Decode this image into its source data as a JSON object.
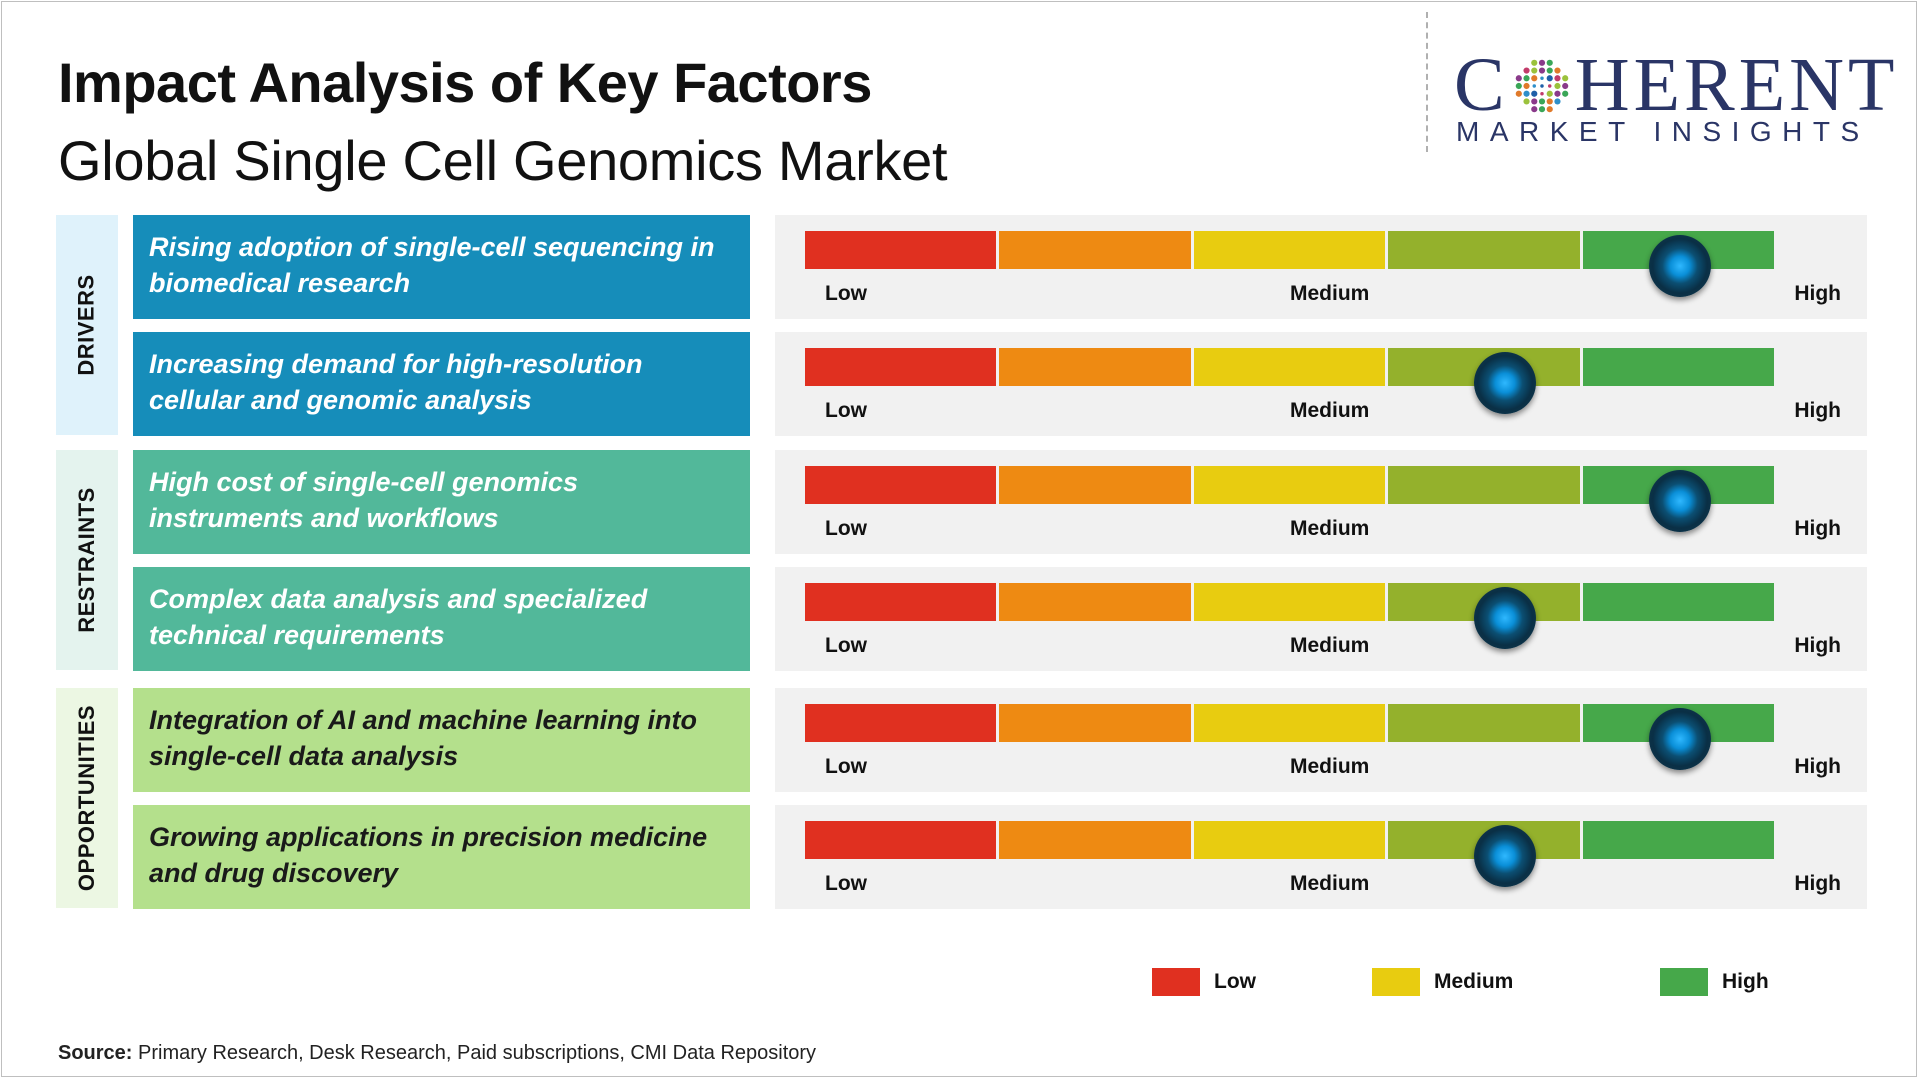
{
  "header": {
    "title": "Impact Analysis of Key Factors",
    "subtitle": "Global Single Cell Genomics Market"
  },
  "logo": {
    "name_prefix": "C",
    "name_suffix": "HERENT",
    "tagline": "MARKET INSIGHTS",
    "brand_color": "#2a3566"
  },
  "scale": {
    "low_label": "Low",
    "medium_label": "Medium",
    "high_label": "High",
    "segment_colors": [
      "#e03020",
      "#ee8a12",
      "#e8cc10",
      "#94b12c",
      "#46a84a"
    ]
  },
  "groups": [
    {
      "name": "DRIVERS",
      "tab_color": "#dff2fb"
    },
    {
      "name": "RESTRAINTS",
      "tab_color": "#e4f3ee"
    },
    {
      "name": "OPPORTUNITIES",
      "tab_color": "#ecf7e3"
    }
  ],
  "factors": [
    {
      "text": "Rising adoption of single-cell sequencing in biomedical research",
      "group": "DRIVERS",
      "impact": 0.9,
      "color": "#168dba"
    },
    {
      "text": "Increasing demand for high-resolution cellular and genomic analysis",
      "group": "DRIVERS",
      "impact": 0.72,
      "color": "#168dba"
    },
    {
      "text": "High cost of single-cell genomics instruments and workflows",
      "group": "RESTRAINTS",
      "impact": 0.9,
      "color": "#52b89a"
    },
    {
      "text": "Complex data analysis and specialized technical requirements",
      "group": "RESTRAINTS",
      "impact": 0.72,
      "color": "#52b89a"
    },
    {
      "text": "Integration of AI and machine learning into single-cell data analysis",
      "group": "OPPORTUNITIES",
      "impact": 0.9,
      "color": "#b4e08c"
    },
    {
      "text": "Growing applications in precision medicine and drug discovery",
      "group": "OPPORTUNITIES",
      "impact": 0.72,
      "color": "#b4e08c"
    }
  ],
  "legend": [
    {
      "label": "Low",
      "color": "#e03020"
    },
    {
      "label": "Medium",
      "color": "#e8cc10"
    },
    {
      "label": "High",
      "color": "#46a84a"
    }
  ],
  "source": {
    "prefix": "Source:",
    "text": " Primary Research, Desk Research, Paid subscriptions, CMI Data Repository"
  }
}
